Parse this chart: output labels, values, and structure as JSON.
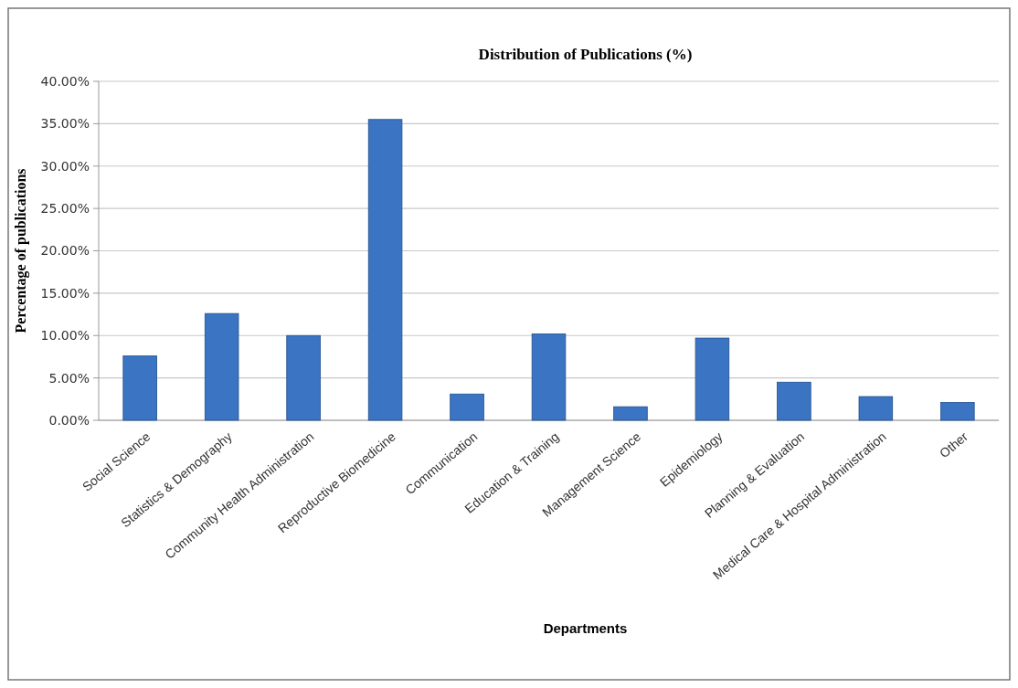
{
  "chart_data": {
    "type": "bar",
    "title": "Distribution of Publications (%)",
    "xlabel": "Departments",
    "ylabel": "Percentage of publications",
    "categories": [
      "Social Science",
      "Statistics & Demography",
      "Community Health Administration",
      "Reproductive Biomedicine",
      "Communication",
      "Education & Training",
      "Management Science",
      "Epidemiology",
      "Planning & Evaluation",
      "Medical Care & Hospital Administration",
      "Other"
    ],
    "values": [
      7.6,
      12.6,
      10.0,
      35.5,
      3.1,
      10.2,
      1.6,
      9.7,
      4.5,
      2.8,
      2.1
    ],
    "color": "#3a74c2",
    "ylim": [
      0,
      40
    ],
    "yticks": [
      {
        "value": 0,
        "label": "0.00%"
      },
      {
        "value": 5,
        "label": "5.00%"
      },
      {
        "value": 10,
        "label": "10.00%"
      },
      {
        "value": 15,
        "label": "15.00%"
      },
      {
        "value": 20,
        "label": "20.00%"
      },
      {
        "value": 25,
        "label": "25.00%"
      },
      {
        "value": 30,
        "label": "30.00%"
      },
      {
        "value": 35,
        "label": "35.00%"
      },
      {
        "value": 40,
        "label": "40.00%"
      }
    ],
    "grid": "y"
  }
}
